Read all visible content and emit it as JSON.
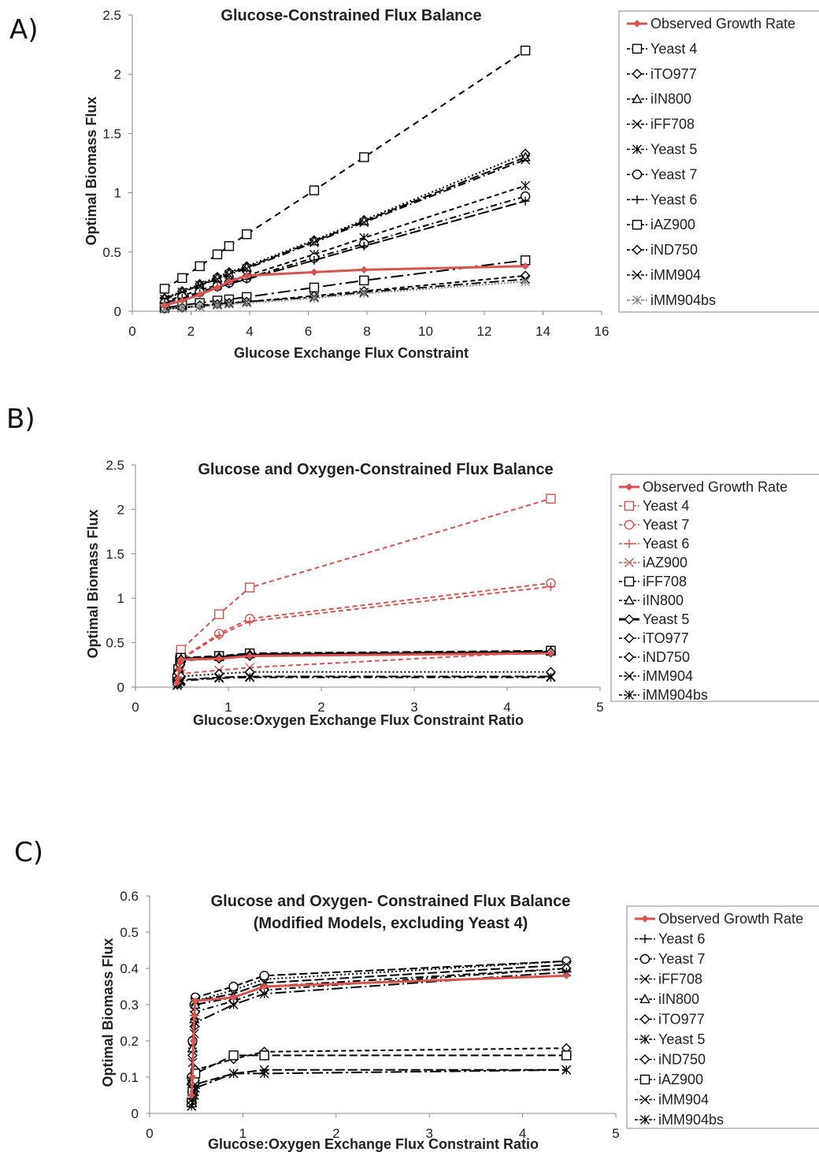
{
  "panel_labels": [
    "A)",
    "B)",
    "C)"
  ],
  "colors": {
    "observed": "#d9534f",
    "black": "#000000",
    "red_dashed": "#d9534f",
    "legend_border": "#888888"
  },
  "chart_data": [
    {
      "type": "line",
      "title": "Glucose-Constrained Flux Balance",
      "xlabel": "Glucose Exchange Flux Constraint",
      "ylabel": "Optimal Biomass Flux",
      "xlim": [
        0,
        16
      ],
      "ylim": [
        0,
        2.5
      ],
      "xticks": [
        0,
        2,
        4,
        6,
        8,
        10,
        12,
        14,
        16
      ],
      "yticks": [
        0,
        0.5,
        1,
        1.5,
        2,
        2.5
      ],
      "ytick_labels": [
        "0",
        "0.5",
        "1",
        "1.5",
        "2",
        "2.5"
      ],
      "grid": false,
      "legend_position": "right",
      "series": [
        {
          "name": "Observed Growth Rate",
          "color": "#d9534f",
          "dash": "solid",
          "marker": "diamond-filled",
          "x": [
            1.1,
            1.7,
            2.3,
            2.9,
            3.3,
            3.9,
            6.2,
            7.9,
            13.4
          ],
          "y": [
            0.05,
            0.09,
            0.14,
            0.2,
            0.25,
            0.3,
            0.33,
            0.35,
            0.38
          ]
        },
        {
          "name": "Yeast 4",
          "color": "#000000",
          "dash": "8,6",
          "marker": "square",
          "x": [
            1.1,
            1.7,
            2.3,
            2.9,
            3.3,
            3.9,
            6.2,
            7.9,
            13.4
          ],
          "y": [
            0.19,
            0.28,
            0.38,
            0.48,
            0.55,
            0.65,
            1.02,
            1.3,
            2.2
          ]
        },
        {
          "name": "iTO977",
          "color": "#000000",
          "dash": "2,3",
          "marker": "diamond",
          "x": [
            1.1,
            1.7,
            2.3,
            2.9,
            3.3,
            3.9,
            6.2,
            7.9,
            13.4
          ],
          "y": [
            0.11,
            0.17,
            0.23,
            0.29,
            0.33,
            0.38,
            0.6,
            0.77,
            1.33
          ]
        },
        {
          "name": "iIN800",
          "color": "#000000",
          "dash": "12,4",
          "marker": "triangle",
          "x": [
            1.1,
            1.7,
            2.3,
            2.9,
            3.3,
            3.9,
            6.2,
            7.9,
            13.4
          ],
          "y": [
            0.11,
            0.16,
            0.22,
            0.28,
            0.32,
            0.37,
            0.59,
            0.76,
            1.3
          ]
        },
        {
          "name": "iFF708",
          "color": "#000000",
          "dash": "10,4,2,4",
          "marker": "x",
          "x": [
            1.1,
            1.7,
            2.3,
            2.9,
            3.3,
            3.9,
            6.2,
            7.9,
            13.4
          ],
          "y": [
            0.1,
            0.16,
            0.22,
            0.27,
            0.31,
            0.36,
            0.58,
            0.75,
            1.28
          ]
        },
        {
          "name": "Yeast 5",
          "color": "#000000",
          "dash": "6,4",
          "marker": "asterisk",
          "x": [
            1.1,
            1.7,
            2.3,
            2.9,
            3.3,
            3.9,
            6.2,
            7.9,
            13.4
          ],
          "y": [
            0.08,
            0.13,
            0.18,
            0.22,
            0.26,
            0.3,
            0.48,
            0.62,
            1.06
          ]
        },
        {
          "name": "Yeast 7",
          "color": "#000000",
          "dash": "8,4,2,4",
          "marker": "circle",
          "x": [
            1.1,
            1.7,
            2.3,
            2.9,
            3.3,
            3.9,
            6.2,
            7.9,
            13.4
          ],
          "y": [
            0.07,
            0.12,
            0.16,
            0.21,
            0.24,
            0.28,
            0.45,
            0.57,
            0.97
          ]
        },
        {
          "name": "Yeast 6",
          "color": "#000000",
          "dash": "14,4",
          "marker": "plus",
          "x": [
            1.1,
            1.7,
            2.3,
            2.9,
            3.3,
            3.9,
            6.2,
            7.9,
            13.4
          ],
          "y": [
            0.07,
            0.11,
            0.15,
            0.2,
            0.23,
            0.27,
            0.43,
            0.55,
            0.93
          ]
        },
        {
          "name": "iAZ900",
          "color": "#000000",
          "dash": "16,5,3,5",
          "marker": "square",
          "x": [
            1.1,
            1.7,
            2.3,
            2.9,
            3.3,
            3.9,
            6.2,
            7.9,
            13.4
          ],
          "y": [
            0.03,
            0.05,
            0.07,
            0.09,
            0.1,
            0.12,
            0.2,
            0.26,
            0.43
          ]
        },
        {
          "name": "iND750",
          "color": "#000000",
          "dash": "6,4",
          "marker": "diamond",
          "x": [
            1.1,
            1.7,
            2.3,
            2.9,
            3.3,
            3.9,
            6.2,
            7.9,
            13.4
          ],
          "y": [
            0.02,
            0.03,
            0.05,
            0.06,
            0.07,
            0.08,
            0.13,
            0.17,
            0.3
          ]
        },
        {
          "name": "iMM904",
          "color": "#000000",
          "dash": "12,4,3,4",
          "marker": "x",
          "x": [
            1.1,
            1.7,
            2.3,
            2.9,
            3.3,
            3.9,
            6.2,
            7.9,
            13.4
          ],
          "y": [
            0.02,
            0.03,
            0.04,
            0.06,
            0.07,
            0.08,
            0.12,
            0.16,
            0.27
          ]
        },
        {
          "name": "iMM904bs",
          "color": "#888888",
          "dash": "2,2",
          "marker": "asterisk",
          "x": [
            1.1,
            1.7,
            2.3,
            2.9,
            3.3,
            3.9,
            6.2,
            7.9,
            13.4
          ],
          "y": [
            0.02,
            0.03,
            0.04,
            0.05,
            0.06,
            0.07,
            0.11,
            0.15,
            0.25
          ]
        }
      ]
    },
    {
      "type": "line",
      "title": "Glucose and Oxygen-Constrained Flux Balance",
      "xlabel": "Glucose:Oxygen Exchange Flux Constraint Ratio",
      "ylabel": "Optimal Biomass Flux",
      "xlim": [
        0,
        5
      ],
      "ylim": [
        0,
        2.5
      ],
      "xticks": [
        0,
        1,
        2,
        3,
        4,
        5
      ],
      "yticks": [
        0,
        0.5,
        1,
        1.5,
        2,
        2.5
      ],
      "ytick_labels": [
        "0",
        "0.5",
        "1",
        "1.5",
        "2",
        "2.5"
      ],
      "grid": false,
      "legend_position": "right",
      "series": [
        {
          "name": "Observed Growth Rate",
          "color": "#d9534f",
          "dash": "solid",
          "marker": "diamond-filled",
          "x": [
            0.45,
            0.46,
            0.47,
            0.48,
            0.49,
            0.9,
            1.23,
            4.47
          ],
          "y": [
            0.05,
            0.1,
            0.2,
            0.27,
            0.31,
            0.32,
            0.35,
            0.38
          ]
        },
        {
          "name": "Yeast 4",
          "color": "#d9534f",
          "dash": "6,4",
          "marker": "square",
          "x": [
            0.45,
            0.46,
            0.48,
            0.49,
            0.9,
            1.23,
            4.47
          ],
          "y": [
            0.1,
            0.2,
            0.33,
            0.42,
            0.82,
            1.12,
            2.12
          ]
        },
        {
          "name": "Yeast 7",
          "color": "#d9534f",
          "dash": "6,4",
          "marker": "circle",
          "x": [
            0.45,
            0.46,
            0.48,
            0.49,
            0.9,
            1.23,
            4.47
          ],
          "y": [
            0.08,
            0.15,
            0.25,
            0.32,
            0.6,
            0.77,
            1.17
          ]
        },
        {
          "name": "Yeast 6",
          "color": "#d9534f",
          "dash": "6,4",
          "marker": "plus",
          "x": [
            0.45,
            0.46,
            0.48,
            0.49,
            0.9,
            1.23,
            4.47
          ],
          "y": [
            0.08,
            0.14,
            0.24,
            0.31,
            0.58,
            0.74,
            1.13
          ]
        },
        {
          "name": "iAZ900",
          "color": "#d9534f",
          "dash": "6,4",
          "marker": "x",
          "x": [
            0.45,
            0.46,
            0.48,
            0.49,
            0.9,
            1.23,
            4.47
          ],
          "y": [
            0.04,
            0.08,
            0.12,
            0.15,
            0.19,
            0.22,
            0.4
          ]
        },
        {
          "name": "iFF708",
          "color": "#000000",
          "dash": "10,4",
          "marker": "square",
          "x": [
            0.45,
            0.46,
            0.48,
            0.49,
            0.9,
            1.23,
            4.47
          ],
          "y": [
            0.1,
            0.2,
            0.3,
            0.33,
            0.35,
            0.38,
            0.41
          ]
        },
        {
          "name": "iIN800",
          "color": "#000000",
          "dash": "14,4",
          "marker": "triangle",
          "x": [
            0.45,
            0.46,
            0.48,
            0.49,
            0.9,
            1.23,
            4.47
          ],
          "y": [
            0.1,
            0.19,
            0.29,
            0.32,
            0.34,
            0.37,
            0.4
          ]
        },
        {
          "name": "Yeast 5",
          "color": "#000000",
          "dash": "solid",
          "marker": "diamond",
          "x": [
            0.45,
            0.46,
            0.48,
            0.49,
            0.9,
            1.23,
            4.47
          ],
          "y": [
            0.09,
            0.18,
            0.27,
            0.31,
            0.33,
            0.36,
            0.39
          ]
        },
        {
          "name": "iTO977",
          "color": "#000000",
          "dash": "8,4,2,4",
          "marker": "diamond",
          "x": [
            0.45,
            0.46,
            0.48,
            0.49,
            0.9,
            1.23,
            4.47
          ],
          "y": [
            0.08,
            0.16,
            0.25,
            0.3,
            0.32,
            0.35,
            0.39
          ]
        },
        {
          "name": "iND750",
          "color": "#000000",
          "dash": "2,3",
          "marker": "diamond",
          "x": [
            0.45,
            0.46,
            0.48,
            0.49,
            0.9,
            1.23,
            4.47
          ],
          "y": [
            0.03,
            0.06,
            0.1,
            0.12,
            0.15,
            0.17,
            0.17
          ]
        },
        {
          "name": "iMM904",
          "color": "#000000",
          "dash": "12,4",
          "marker": "x",
          "x": [
            0.45,
            0.46,
            0.48,
            0.49,
            0.9,
            1.23,
            4.47
          ],
          "y": [
            0.02,
            0.04,
            0.07,
            0.08,
            0.11,
            0.12,
            0.12
          ]
        },
        {
          "name": "iMM904bs",
          "color": "#000000",
          "dash": "10,4,2,4",
          "marker": "asterisk",
          "x": [
            0.45,
            0.46,
            0.48,
            0.49,
            0.9,
            1.23,
            4.47
          ],
          "y": [
            0.02,
            0.04,
            0.06,
            0.07,
            0.1,
            0.11,
            0.11
          ]
        }
      ]
    },
    {
      "type": "line",
      "title": "Glucose and Oxygen- Constrained Flux Balance",
      "subtitle": "(Modified Models, excluding Yeast 4)",
      "xlabel": "Glucose:Oxygen Exchange Flux Constraint Ratio",
      "ylabel": "Optimal Biomass Flux",
      "xlim": [
        0,
        5
      ],
      "ylim": [
        0,
        0.6
      ],
      "xticks": [
        0,
        1,
        2,
        3,
        4,
        5
      ],
      "yticks": [
        0,
        0.1,
        0.2,
        0.3,
        0.4,
        0.5,
        0.6
      ],
      "ytick_labels": [
        "0",
        "0.1",
        "0.2",
        "0.3",
        "0.4",
        "0.5",
        "0.6"
      ],
      "grid": false,
      "legend_position": "right",
      "series": [
        {
          "name": "Observed Growth Rate",
          "color": "#d9534f",
          "dash": "solid",
          "marker": "diamond-filled",
          "x": [
            0.45,
            0.46,
            0.47,
            0.48,
            0.49,
            0.9,
            1.23,
            4.47
          ],
          "y": [
            0.05,
            0.1,
            0.2,
            0.27,
            0.31,
            0.32,
            0.35,
            0.38
          ]
        },
        {
          "name": "Yeast 6",
          "color": "#000000",
          "dash": "2,3",
          "marker": "plus",
          "x": [
            0.45,
            0.46,
            0.48,
            0.49,
            0.9,
            1.23,
            4.47
          ],
          "y": [
            0.09,
            0.18,
            0.27,
            0.31,
            0.34,
            0.37,
            0.42
          ]
        },
        {
          "name": "Yeast 7",
          "color": "#000000",
          "dash": "10,4",
          "marker": "circle",
          "x": [
            0.45,
            0.46,
            0.48,
            0.49,
            0.9,
            1.23,
            4.47
          ],
          "y": [
            0.1,
            0.2,
            0.3,
            0.32,
            0.35,
            0.38,
            0.42
          ]
        },
        {
          "name": "iFF708",
          "color": "#000000",
          "dash": "12,4",
          "marker": "x",
          "x": [
            0.45,
            0.46,
            0.48,
            0.49,
            0.9,
            1.23,
            4.47
          ],
          "y": [
            0.09,
            0.18,
            0.27,
            0.31,
            0.33,
            0.36,
            0.41
          ]
        },
        {
          "name": "iIN800",
          "color": "#000000",
          "dash": "10,4,2,4",
          "marker": "triangle",
          "x": [
            0.45,
            0.46,
            0.48,
            0.49,
            0.9,
            1.23,
            4.47
          ],
          "y": [
            0.09,
            0.18,
            0.26,
            0.3,
            0.32,
            0.35,
            0.4
          ]
        },
        {
          "name": "iTO977",
          "color": "#000000",
          "dash": "8,4,2,4",
          "marker": "diamond",
          "x": [
            0.45,
            0.46,
            0.48,
            0.49,
            0.9,
            1.23,
            4.47
          ],
          "y": [
            0.08,
            0.16,
            0.24,
            0.28,
            0.31,
            0.34,
            0.4
          ]
        },
        {
          "name": "Yeast 5",
          "color": "#000000",
          "dash": "14,4,2,4",
          "marker": "asterisk",
          "x": [
            0.45,
            0.46,
            0.48,
            0.49,
            0.9,
            1.23,
            4.47
          ],
          "y": [
            0.07,
            0.14,
            0.22,
            0.25,
            0.3,
            0.33,
            0.39
          ]
        },
        {
          "name": "iND750",
          "color": "#000000",
          "dash": "6,4",
          "marker": "diamond",
          "x": [
            0.45,
            0.46,
            0.48,
            0.49,
            0.9,
            1.23,
            4.47
          ],
          "y": [
            0.03,
            0.06,
            0.1,
            0.12,
            0.15,
            0.17,
            0.18
          ]
        },
        {
          "name": "iAZ900",
          "color": "#000000",
          "dash": "10,4",
          "marker": "square",
          "x": [
            0.45,
            0.46,
            0.48,
            0.49,
            0.9,
            1.23,
            4.47
          ],
          "y": [
            0.03,
            0.06,
            0.09,
            0.11,
            0.16,
            0.16,
            0.16
          ]
        },
        {
          "name": "iMM904",
          "color": "#000000",
          "dash": "12,4",
          "marker": "x",
          "x": [
            0.45,
            0.46,
            0.48,
            0.49,
            0.9,
            1.23,
            4.47
          ],
          "y": [
            0.02,
            0.04,
            0.06,
            0.08,
            0.11,
            0.12,
            0.12
          ]
        },
        {
          "name": "iMM904bs",
          "color": "#000000",
          "dash": "14,4,3,4",
          "marker": "asterisk",
          "x": [
            0.45,
            0.46,
            0.48,
            0.49,
            0.9,
            1.23,
            4.47
          ],
          "y": [
            0.02,
            0.03,
            0.05,
            0.07,
            0.11,
            0.11,
            0.12
          ]
        }
      ]
    }
  ]
}
